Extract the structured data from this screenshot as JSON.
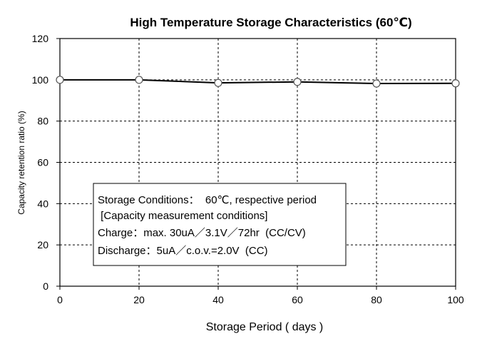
{
  "chart_data": {
    "type": "line",
    "title": "High Temperature Storage Characteristics  (60℃)",
    "xlabel": "Storage Period  (  days  )",
    "ylabel": "Capacity retention ratio (%)",
    "xlim": [
      0,
      100
    ],
    "ylim": [
      0,
      120
    ],
    "xticks": [
      0,
      20,
      40,
      60,
      80,
      100
    ],
    "yticks": [
      0,
      20,
      40,
      60,
      80,
      100,
      120
    ],
    "grid": true,
    "series": [
      {
        "x": [
          0,
          20,
          40,
          60,
          80,
          100
        ],
        "y": [
          100,
          100,
          98.5,
          99,
          98.2,
          98.3
        ]
      }
    ],
    "annotation": {
      "lines": [
        "Storage Conditions：  60℃, respective period",
        " [Capacity measurement conditions]",
        "Charge：max. 30uA／3.1V／72hr  (CC/CV)",
        "Discharge：5uA／c.o.v.=2.0V  (CC)"
      ]
    },
    "colors": {
      "line": "#000000",
      "marker_fill": "#ffffff",
      "marker_stroke": "#555555",
      "grid": "#000000"
    }
  }
}
